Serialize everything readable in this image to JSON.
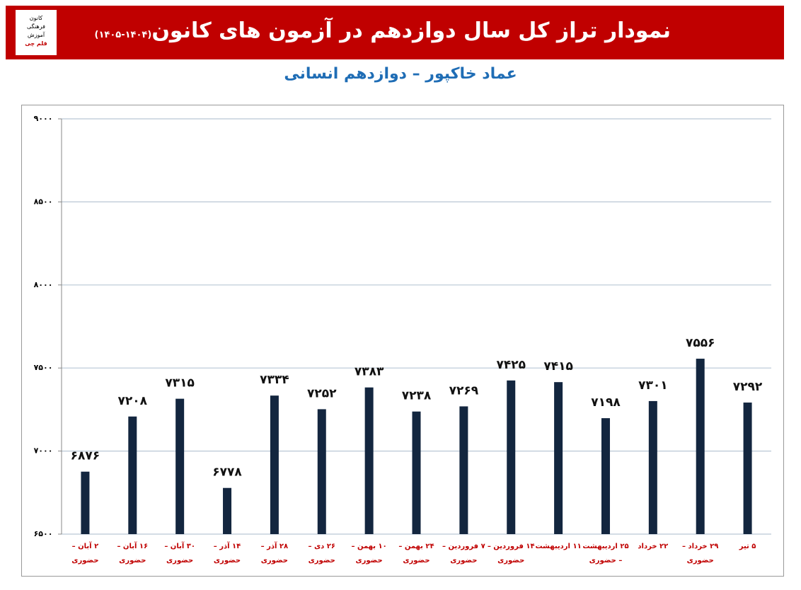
{
  "header": {
    "title": "نمودار تراز کل سال دوازدهم در آزمون های کانون",
    "title_note": "(۱۴۰۴-۱۴۰۵)",
    "logo_lines": [
      "کانون",
      "فرهنگی",
      "آموزش",
      "قلم چی"
    ]
  },
  "chart_data": {
    "type": "bar",
    "title": "عماد خاکپور – دوازدهم انسانی",
    "categories": [
      "۲ آبان – حضوری",
      "۱۶ آبان – حضوری",
      "۳۰ آبان – حضوری",
      "۱۴ آذر – حضوری",
      "۲۸ آذر – حضوری",
      "۲۶ دی – حضوری",
      "۱۰ بهمن – حضوری",
      "۲۴ بهمن – حضوری",
      "۷ فروردین – حضوری",
      "۱۴ فروردین – حضوری",
      "۱۱ اردیبهشت",
      "۲۵ اردیبهشت – حضوری",
      "۲۲ خرداد",
      "۲۹ خرداد – حضوری",
      "۵ تیر"
    ],
    "values": [
      6876,
      7208,
      7315,
      6778,
      7334,
      7252,
      7383,
      7238,
      7269,
      7425,
      7415,
      7198,
      7301,
      7556,
      7292
    ],
    "value_labels": [
      "۶۸۷۶",
      "۷۲۰۸",
      "۷۳۱۵",
      "۶۷۷۸",
      "۷۳۳۴",
      "۷۲۵۲",
      "۷۳۸۳",
      "۷۲۳۸",
      "۷۲۶۹",
      "۷۴۲۵",
      "۷۴۱۵",
      "۷۱۹۸",
      "۷۳۰۱",
      "۷۵۵۶",
      "۷۲۹۲"
    ],
    "color": "#13263f",
    "ylim": [
      6500,
      9000
    ],
    "yticks": [
      {
        "value": 6500,
        "label": "۶۵۰۰"
      },
      {
        "value": 7000,
        "label": "۷۰۰۰"
      },
      {
        "value": 7500,
        "label": "۷۵۰۰"
      },
      {
        "value": 8000,
        "label": "۸۰۰۰"
      },
      {
        "value": 8500,
        "label": "۸۵۰۰"
      },
      {
        "value": 9000,
        "label": "۹۰۰۰"
      }
    ],
    "grid": true
  }
}
